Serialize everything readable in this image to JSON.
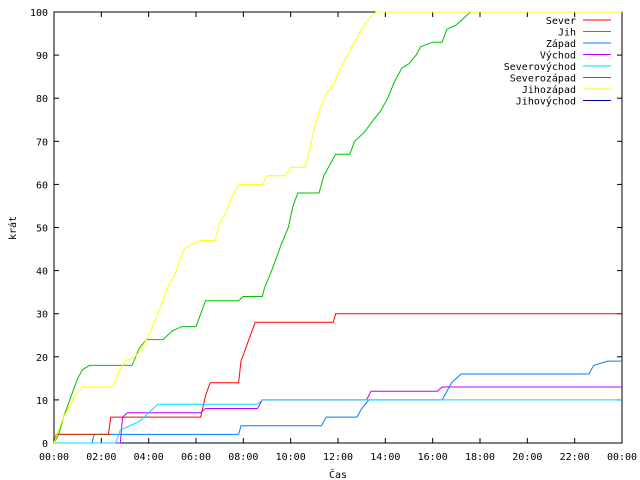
{
  "chart_data": {
    "type": "line",
    "title": "",
    "xlabel": "Čas",
    "ylabel": "krát",
    "xlim": [
      0,
      24
    ],
    "ylim": [
      0,
      100
    ],
    "x_ticks": [
      {
        "value": 0,
        "label": "00:00"
      },
      {
        "value": 2,
        "label": "02:00"
      },
      {
        "value": 4,
        "label": "04:00"
      },
      {
        "value": 6,
        "label": "06:00"
      },
      {
        "value": 8,
        "label": "08:00"
      },
      {
        "value": 10,
        "label": "10:00"
      },
      {
        "value": 12,
        "label": "12:00"
      },
      {
        "value": 14,
        "label": "14:00"
      },
      {
        "value": 16,
        "label": "16:00"
      },
      {
        "value": 18,
        "label": "18:00"
      },
      {
        "value": 20,
        "label": "20:00"
      },
      {
        "value": 22,
        "label": "22:00"
      },
      {
        "value": 24,
        "label": "00:00"
      }
    ],
    "y_ticks": [
      0,
      10,
      20,
      30,
      40,
      50,
      60,
      70,
      80,
      90,
      100
    ],
    "grid": false,
    "legend_position": "top-right",
    "series": [
      {
        "name": "Sever",
        "color": "#ff0000",
        "points": [
          [
            0,
            0
          ],
          [
            0.1,
            2
          ],
          [
            2.3,
            2
          ],
          [
            2.4,
            6
          ],
          [
            6.2,
            6
          ],
          [
            6.4,
            11
          ],
          [
            6.6,
            14
          ],
          [
            7.8,
            14
          ],
          [
            7.9,
            19
          ],
          [
            8.1,
            22
          ],
          [
            8.3,
            25
          ],
          [
            8.5,
            28
          ],
          [
            11.8,
            28
          ],
          [
            11.9,
            30
          ],
          [
            24,
            30
          ]
        ]
      },
      {
        "name": "Jih",
        "color": "#00c000",
        "points": [
          [
            0,
            0
          ],
          [
            0.2,
            2
          ],
          [
            0.4,
            6
          ],
          [
            0.6,
            9
          ],
          [
            0.8,
            12
          ],
          [
            1.0,
            15
          ],
          [
            1.2,
            17
          ],
          [
            1.5,
            18
          ],
          [
            3.3,
            18
          ],
          [
            3.6,
            22
          ],
          [
            3.9,
            24
          ],
          [
            4.6,
            24
          ],
          [
            5.0,
            26
          ],
          [
            5.4,
            27
          ],
          [
            6.0,
            27
          ],
          [
            6.4,
            33
          ],
          [
            7.8,
            33
          ],
          [
            8.0,
            34
          ],
          [
            8.8,
            34
          ],
          [
            8.9,
            36
          ],
          [
            9.2,
            40
          ],
          [
            9.6,
            46
          ],
          [
            9.9,
            50
          ],
          [
            10.1,
            55
          ],
          [
            10.3,
            58
          ],
          [
            11.2,
            58
          ],
          [
            11.4,
            62
          ],
          [
            11.7,
            65
          ],
          [
            11.9,
            67
          ],
          [
            12.5,
            67
          ],
          [
            12.7,
            70
          ],
          [
            13.1,
            72
          ],
          [
            13.5,
            75
          ],
          [
            13.8,
            77
          ],
          [
            14.1,
            80
          ],
          [
            14.4,
            84
          ],
          [
            14.7,
            87
          ],
          [
            15.0,
            88
          ],
          [
            15.3,
            90
          ],
          [
            15.5,
            92
          ],
          [
            16.0,
            93
          ],
          [
            16.4,
            93
          ],
          [
            16.6,
            96
          ],
          [
            17.0,
            97
          ],
          [
            17.4,
            99
          ],
          [
            17.6,
            100
          ],
          [
            24,
            100
          ]
        ]
      },
      {
        "name": "Západ",
        "color": "#0080ff",
        "points": [
          [
            0,
            0
          ],
          [
            1.6,
            0
          ],
          [
            1.7,
            2
          ],
          [
            7.8,
            2
          ],
          [
            7.9,
            4
          ],
          [
            11.3,
            4
          ],
          [
            11.5,
            6
          ],
          [
            12.8,
            6
          ],
          [
            13.0,
            8
          ],
          [
            13.3,
            10
          ],
          [
            16.4,
            10
          ],
          [
            16.6,
            12
          ],
          [
            16.8,
            14
          ],
          [
            17.2,
            16
          ],
          [
            22.6,
            16
          ],
          [
            22.8,
            18
          ],
          [
            23.4,
            19
          ],
          [
            24,
            19
          ]
        ]
      },
      {
        "name": "Východ",
        "color": "#c000ff",
        "points": [
          [
            0,
            0
          ],
          [
            2.8,
            0
          ],
          [
            2.9,
            6
          ],
          [
            3.1,
            7
          ],
          [
            6.2,
            7
          ],
          [
            6.4,
            8
          ],
          [
            8.6,
            8
          ],
          [
            8.8,
            10
          ],
          [
            13.2,
            10
          ],
          [
            13.4,
            12
          ],
          [
            16.2,
            12
          ],
          [
            16.4,
            13
          ],
          [
            24,
            13
          ]
        ]
      },
      {
        "name": "Severovýchod",
        "color": "#00e0ff",
        "points": [
          [
            0,
            0
          ],
          [
            2.6,
            0
          ],
          [
            2.8,
            3
          ],
          [
            3.6,
            5
          ],
          [
            4.2,
            8
          ],
          [
            4.4,
            9
          ],
          [
            8.6,
            9
          ],
          [
            8.8,
            10
          ],
          [
            24,
            10
          ]
        ]
      },
      {
        "name": "Severozápad",
        "color": "#c04000",
        "points": [
          [
            0,
            0
          ],
          [
            0.1,
            2
          ],
          [
            2.4,
            2
          ]
        ]
      },
      {
        "name": "Jihozápad",
        "color": "#ffff00",
        "points": [
          [
            0,
            0
          ],
          [
            0.2,
            3
          ],
          [
            0.4,
            6
          ],
          [
            0.6,
            8
          ],
          [
            0.9,
            11
          ],
          [
            1.2,
            13
          ],
          [
            2.5,
            13
          ],
          [
            2.7,
            16
          ],
          [
            3.0,
            19
          ],
          [
            3.4,
            20
          ],
          [
            3.6,
            21
          ],
          [
            3.9,
            24
          ],
          [
            4.1,
            26
          ],
          [
            4.3,
            29
          ],
          [
            4.6,
            33
          ],
          [
            4.8,
            36
          ],
          [
            5.1,
            39
          ],
          [
            5.3,
            42
          ],
          [
            5.5,
            45
          ],
          [
            5.8,
            46
          ],
          [
            6.2,
            47
          ],
          [
            6.8,
            47
          ],
          [
            7.0,
            51
          ],
          [
            7.3,
            54
          ],
          [
            7.5,
            57
          ],
          [
            7.8,
            60
          ],
          [
            8.8,
            60
          ],
          [
            9.0,
            62
          ],
          [
            9.8,
            62
          ],
          [
            10.0,
            64
          ],
          [
            10.6,
            64
          ],
          [
            10.8,
            68
          ],
          [
            11.0,
            73
          ],
          [
            11.2,
            77
          ],
          [
            11.5,
            81
          ],
          [
            11.8,
            83
          ],
          [
            12.1,
            87
          ],
          [
            12.5,
            91
          ],
          [
            12.8,
            94
          ],
          [
            13.1,
            97
          ],
          [
            13.4,
            99
          ],
          [
            13.6,
            100
          ],
          [
            24,
            100
          ]
        ]
      },
      {
        "name": "Jihovýchod",
        "color": "#0000a0",
        "points": []
      }
    ]
  }
}
